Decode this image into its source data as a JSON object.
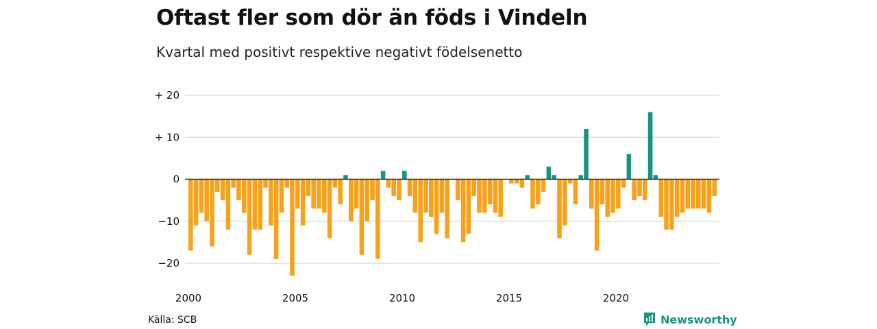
{
  "title": "Oftast fler som dör än föds i Vindeln",
  "subtitle": "Kvartal med positivt respektive negativt födelsenetto",
  "source": "Källa: SCB",
  "brand": {
    "name": "Newsworthy",
    "icon": "newsworthy-logo-icon",
    "color": "#1a9482"
  },
  "colors": {
    "positive": "#1a9482",
    "negative": "#f7a21b",
    "grid": "#dddddd",
    "zero_line": "#222222"
  },
  "chart_data": {
    "type": "bar",
    "title": "Oftast fler som dör än föds i Vindeln",
    "subtitle": "Kvartal med positivt respektive negativt födelsenetto",
    "xlabel": "",
    "ylabel": "",
    "x_start": "2000Q1",
    "ylim": [
      -24,
      21
    ],
    "yticks": [
      20,
      10,
      0,
      -10,
      -20
    ],
    "ytick_labels": [
      "+ 20",
      "+ 10",
      "0",
      "−10",
      "−20"
    ],
    "xtick_years": [
      2000,
      2005,
      2010,
      2015,
      2020
    ],
    "xtick_labels": [
      "2000",
      "2005",
      "2010",
      "2015",
      "2020"
    ],
    "grid": true,
    "values": [
      -17,
      -11,
      -8,
      -10,
      -16,
      -3,
      -5,
      -12,
      -2,
      -5,
      -8,
      -18,
      -12,
      -12,
      -2,
      -11,
      -19,
      -8,
      -2,
      -23,
      -7,
      -11,
      -4,
      -7,
      -7,
      -8,
      -14,
      -2,
      -6,
      1,
      -10,
      -7,
      -18,
      -10,
      -5,
      -19,
      2,
      -2,
      -4,
      -5,
      2,
      -4,
      -8,
      -15,
      -8,
      -9,
      -13,
      -8,
      -14,
      0,
      -5,
      -15,
      -13,
      -4,
      -8,
      -8,
      -6,
      -8,
      -9,
      0,
      -1,
      -1,
      -2,
      1,
      -7,
      -6,
      -3,
      3,
      1,
      -14,
      -11,
      -1,
      -6,
      1,
      12,
      -7,
      -17,
      -6,
      -9,
      -8,
      -7,
      -2,
      6,
      -5,
      -4,
      -5,
      16,
      1,
      -9,
      -12,
      -12,
      -9,
      -8,
      -7,
      -7,
      -7,
      -7,
      -8,
      -4
    ]
  }
}
